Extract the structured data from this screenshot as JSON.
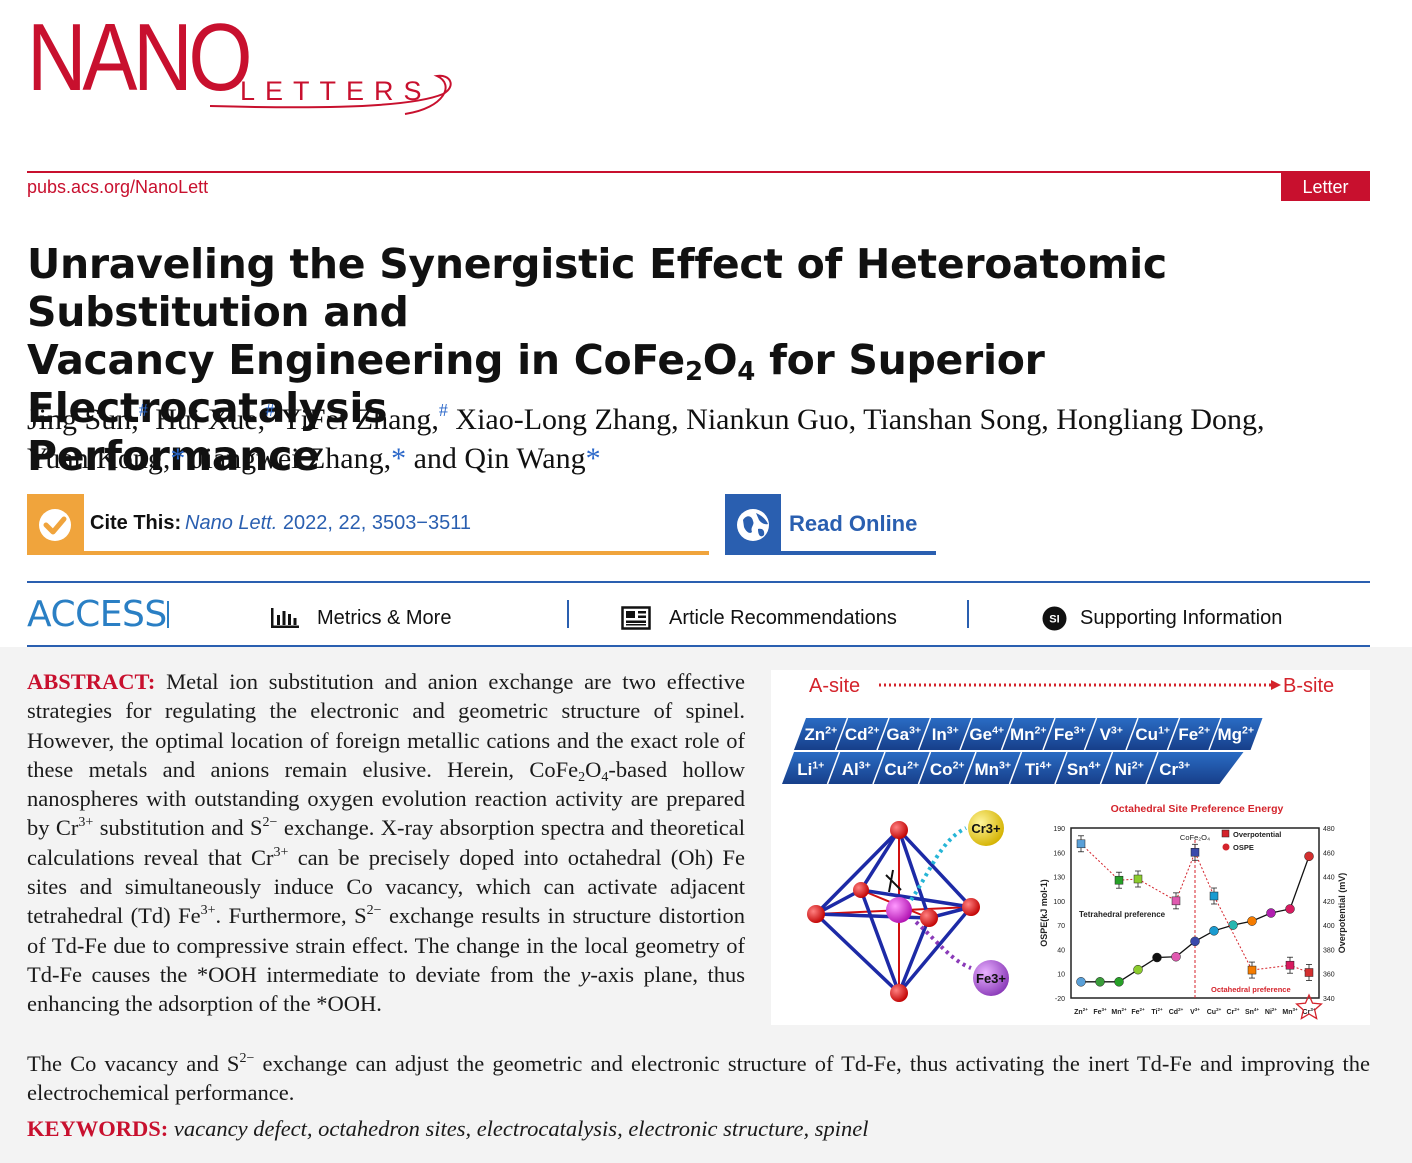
{
  "logo": {
    "nano": "NANO",
    "letters": "LETTERS"
  },
  "journal_url": "pubs.acs.org/NanoLett",
  "article_type": "Letter",
  "title": {
    "line1": "Unraveling the Synergistic Effect of Heteroatomic Substitution and",
    "line2_pre": "Vacancy Engineering in CoFe",
    "sub2": "2",
    "mid": "O",
    "sub4": "4",
    "line2_post": " for Superior Electrocatalysis",
    "line3": "Performance"
  },
  "authors": {
    "a1": "Jing Sun,",
    "m1": "#",
    "a2": " Hui Xue,",
    "m2": "#",
    "a3": " YiFei Zhang,",
    "m3": "#",
    "a4": " Xiao-Long Zhang, Niankun Guo, Tianshan Song, Hongliang Dong,",
    "a5": "Yuan Kong,",
    "m5": "*",
    "a6": " Jiangwei Zhang,",
    "m6": "*",
    "a7": " and Qin Wang",
    "m7": "*"
  },
  "cite": {
    "label": "Cite This:",
    "journal": "Nano Lett.",
    "ref": " 2022, 22, 3503−3511",
    "read_online": "Read Online"
  },
  "access": {
    "label": "ACCESS",
    "metrics": "Metrics & More",
    "recommendations": "Article Recommendations",
    "si_badge": "SI",
    "supporting": "Supporting Information"
  },
  "abstract": {
    "label": "ABSTRACT:",
    "p1": " Metal ion substitution and anion exchange are two effective strategies for regulating the electronic and geometric structure of spinel. However, the optimal location of foreign metallic cations and the exact role of these metals and anions remain elusive. Herein, CoFe",
    "s1": "2",
    "p1b": "O",
    "s2": "4",
    "p2": "-based hollow nanospheres with outstanding oxygen evolution reaction activity are prepared by Cr",
    "sup1": "3+",
    "p3": " substitution and S",
    "sup2": "2−",
    "p4": " exchange. X-ray absorption spectra and theoretical calculations reveal that Cr",
    "sup3": "3+",
    "p5": " can be precisely doped into octahedral (Oh) Fe sites and simultaneously induce Co vacancy, which can activate adjacent tetrahedral (Td) Fe",
    "sup4": "3+",
    "p6": ". Furthermore, S",
    "sup5": "2−",
    "p7": " exchange results in structure distortion of Td-Fe due to compressive strain effect. The change in the local geometry of Td-Fe causes the *OOH intermediate to deviate from the ",
    "italic_y": "y",
    "p8": "-axis plane, thus enhancing the adsorption of the *OOH.",
    "tail1": "The Co vacancy and S",
    "tail_sup": "2−",
    "tail2": " exchange can adjust the geometric and electronic structure of Td-Fe, thus activating the inert Td-Fe and improving the electrochemical performance."
  },
  "keywords": {
    "label": "KEYWORDS:",
    "list": "vacancy defect, octahedron sites, electrocatalysis, electronic structure, spinel"
  },
  "toc": {
    "a_site": "A-site",
    "b_site": "B-site",
    "row1": [
      "Zn2+",
      "Cd2+",
      "Ga3+",
      "In3+",
      "Ge4+",
      "Mn2+",
      "Fe3+",
      "V3+",
      "Cu1+",
      "Fe2+",
      "Mg2+"
    ],
    "row2": [
      "Li1+",
      "Al3+",
      "Cu2+",
      "Co2+",
      "Mn3+",
      "Ti4+",
      "Sn4+",
      "Ni2+",
      "Cr3+"
    ],
    "cr_ball": "Cr3+",
    "fe_ball": "Fe3+",
    "chart_title": "Octahedral Site Preference Energy",
    "cofe_label": "CoFe₂O₄",
    "tetra_label": "Tetrahedral preference",
    "octa_label": "Octahedral preference",
    "legend_over": "Overpotential",
    "legend_ospe": "OSPE"
  },
  "chart_data": {
    "type": "scatter",
    "title": "Octahedral Site Preference Energy",
    "categories": [
      "Zn2+",
      "Fe3+",
      "Mn2+",
      "Fe2+",
      "Ti2+",
      "Cd2+",
      "V3+",
      "Cu2+",
      "Cr2+",
      "Sn4+",
      "Ni2+",
      "Mn3+",
      "Cr3+"
    ],
    "ylabel": "OSPE(kJ mol-1)",
    "y2label": "Overpotential (mV)",
    "ylim": [
      -20,
      190
    ],
    "y2lim": [
      340,
      480
    ],
    "y_ticks": [
      -20,
      10,
      40,
      70,
      100,
      130,
      160,
      190
    ],
    "y2_ticks": [
      340,
      360,
      380,
      400,
      420,
      440,
      460,
      480
    ],
    "series": [
      {
        "name": "OSPE",
        "values": [
          0,
          0,
          0,
          15,
          30,
          31,
          50,
          63,
          70,
          75,
          85,
          90,
          155
        ]
      },
      {
        "name": "Overpotential",
        "values": [
          467,
          null,
          437,
          438,
          null,
          420,
          460,
          424,
          null,
          363,
          null,
          367,
          361
        ]
      }
    ]
  }
}
